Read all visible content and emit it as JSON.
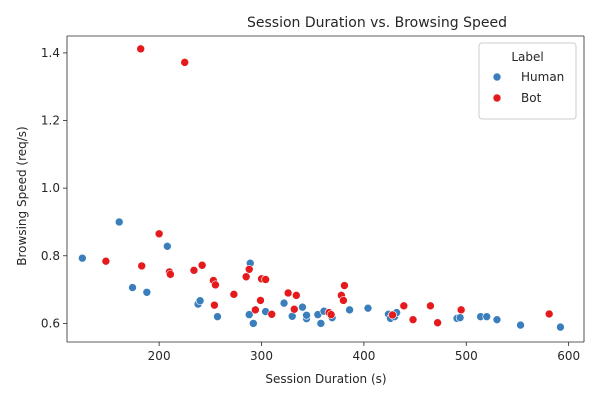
{
  "chart_data": {
    "type": "scatter",
    "title": "Session Duration vs. Browsing Speed",
    "xlabel": "Session Duration (s)",
    "ylabel": "Browsing Speed (req/s)",
    "xlim": [
      110,
      615
    ],
    "ylim": [
      0.545,
      1.45
    ],
    "xticks": [
      200,
      300,
      400,
      500,
      600
    ],
    "yticks": [
      0.6,
      0.8,
      1.0,
      1.2,
      1.4
    ],
    "xtick_labels": [
      "200",
      "300",
      "400",
      "500",
      "600"
    ],
    "ytick_labels": [
      "0.6",
      "0.8",
      "1.0",
      "1.2",
      "1.4"
    ],
    "grid": false,
    "legend": {
      "title": "Label",
      "position": "top-right"
    },
    "series": [
      {
        "name": "Human",
        "color": "#3a7fbc",
        "points": [
          [
            125,
            0.793
          ],
          [
            161,
            0.9
          ],
          [
            174,
            0.706
          ],
          [
            188,
            0.692
          ],
          [
            208,
            0.828
          ],
          [
            238,
            0.657
          ],
          [
            240,
            0.667
          ],
          [
            257,
            0.62
          ],
          [
            289,
            0.778
          ],
          [
            288,
            0.626
          ],
          [
            292,
            0.6
          ],
          [
            304,
            0.635
          ],
          [
            322,
            0.66
          ],
          [
            330,
            0.621
          ],
          [
            340,
            0.648
          ],
          [
            344,
            0.614
          ],
          [
            344,
            0.624
          ],
          [
            355,
            0.626
          ],
          [
            358,
            0.6
          ],
          [
            361,
            0.636
          ],
          [
            368,
            0.621
          ],
          [
            369,
            0.617
          ],
          [
            386,
            0.64
          ],
          [
            404,
            0.645
          ],
          [
            424,
            0.627
          ],
          [
            426,
            0.615
          ],
          [
            430,
            0.62
          ],
          [
            432,
            0.632
          ],
          [
            491,
            0.615
          ],
          [
            494,
            0.617
          ],
          [
            514,
            0.62
          ],
          [
            520,
            0.62
          ],
          [
            530,
            0.611
          ],
          [
            553,
            0.595
          ],
          [
            592,
            0.589
          ]
        ]
      },
      {
        "name": "Bot",
        "color": "#e41a1c",
        "points": [
          [
            148,
            0.784
          ],
          [
            182,
            1.412
          ],
          [
            183,
            0.77
          ],
          [
            200,
            0.865
          ],
          [
            210,
            0.752
          ],
          [
            211,
            0.745
          ],
          [
            225,
            1.372
          ],
          [
            234,
            0.757
          ],
          [
            242,
            0.772
          ],
          [
            253,
            0.727
          ],
          [
            254,
            0.654
          ],
          [
            255,
            0.714
          ],
          [
            273,
            0.686
          ],
          [
            285,
            0.738
          ],
          [
            288,
            0.76
          ],
          [
            294,
            0.64
          ],
          [
            299,
            0.668
          ],
          [
            300,
            0.732
          ],
          [
            304,
            0.73
          ],
          [
            310,
            0.627
          ],
          [
            326,
            0.69
          ],
          [
            332,
            0.642
          ],
          [
            334,
            0.683
          ],
          [
            366,
            0.632
          ],
          [
            368,
            0.626
          ],
          [
            378,
            0.683
          ],
          [
            380,
            0.668
          ],
          [
            381,
            0.712
          ],
          [
            428,
            0.625
          ],
          [
            439,
            0.652
          ],
          [
            448,
            0.611
          ],
          [
            465,
            0.652
          ],
          [
            472,
            0.602
          ],
          [
            495,
            0.64
          ],
          [
            581,
            0.628
          ]
        ]
      }
    ]
  }
}
